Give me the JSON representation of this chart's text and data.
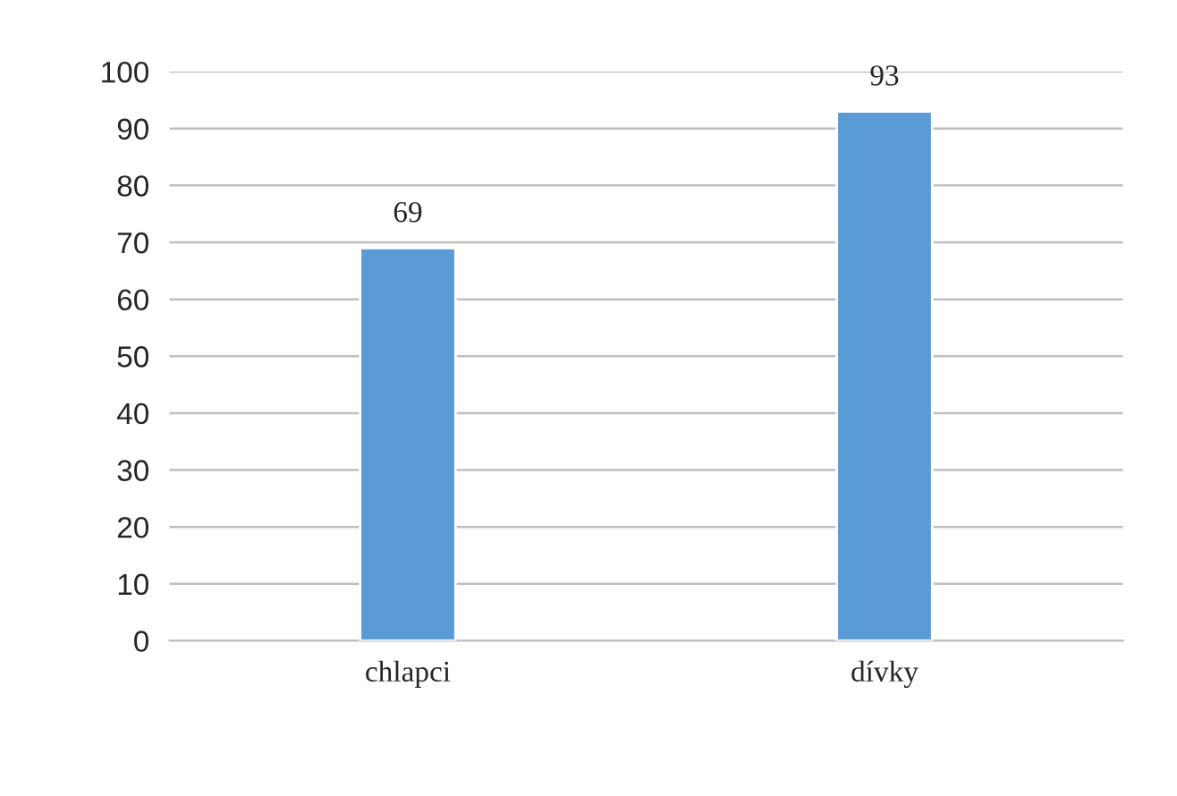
{
  "chart_data": {
    "type": "bar",
    "categories": [
      "chlapci",
      "dívky"
    ],
    "values": [
      69,
      93
    ],
    "color": "#5b9bd5",
    "ylim": [
      0,
      100
    ],
    "yticks": [
      0,
      10,
      20,
      30,
      40,
      50,
      60,
      70,
      80,
      90,
      100
    ],
    "grid": "y",
    "data_labels": true
  }
}
